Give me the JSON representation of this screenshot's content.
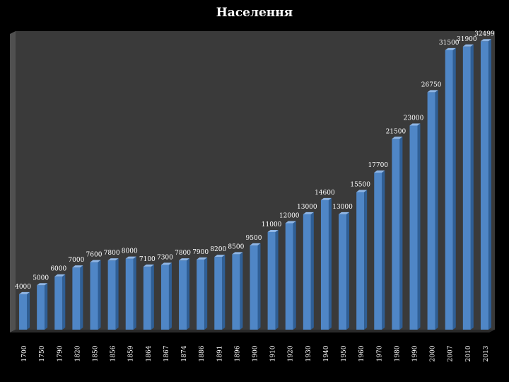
{
  "chart_data": {
    "type": "bar",
    "title": "Населення",
    "xlabel": "",
    "ylabel": "",
    "categories": [
      "1700",
      "1750",
      "1790",
      "1820",
      "1850",
      "1856",
      "1859",
      "1864",
      "1867",
      "1874",
      "1886",
      "1891",
      "1896",
      "1900",
      "1910",
      "1920",
      "1930",
      "1940",
      "1950",
      "1960",
      "1970",
      "1980",
      "1990",
      "2000",
      "2007",
      "2010",
      "2013"
    ],
    "values": [
      4000,
      5000,
      6000,
      7000,
      7600,
      7800,
      8000,
      7100,
      7300,
      7800,
      7900,
      8200,
      8500,
      9500,
      11000,
      12000,
      13000,
      14600,
      13000,
      15500,
      17700,
      21500,
      23000,
      26750,
      31500,
      31900,
      32499
    ],
    "ylim": [
      0,
      33000
    ],
    "grid": false,
    "legend": "none",
    "colors": {
      "bar_front": "#4f86c6",
      "bar_side": "#2f5f96",
      "bar_top": "#8fb6e6",
      "plot_bg": "#3a3a3a",
      "wall": "#505050",
      "floor": "#2a2a2a"
    }
  }
}
